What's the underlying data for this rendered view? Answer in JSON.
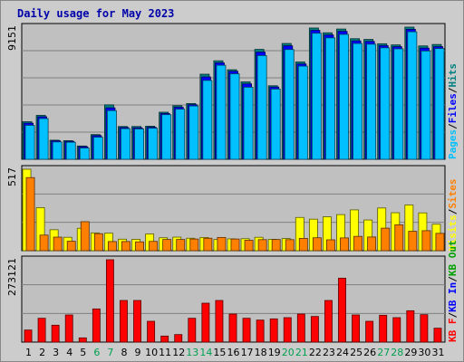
{
  "title": "Daily usage for May 2023",
  "colors": {
    "background": "#cccccc",
    "plot": "#c0c0c0",
    "title": "#0000aa",
    "hits": "#008080",
    "files": "#0000ff",
    "pages": "#00c0ff",
    "visits": "#ffff00",
    "sites": "#ff8000",
    "kb": "#ff0000",
    "kb_in": "#0000ff",
    "kb_out": "#00a000",
    "weekend_tick": "#00a050"
  },
  "chart_data": [
    {
      "type": "bar",
      "panel": "top",
      "ymax_label": "9151",
      "ymax": 9151,
      "right_legend": [
        {
          "text": "Pages",
          "color": "#00c0ff"
        },
        {
          "text": "/",
          "color": "#000000"
        },
        {
          "text": "Files",
          "color": "#0000ff"
        },
        {
          "text": "/",
          "color": "#000000"
        },
        {
          "text": "Hits",
          "color": "#008080"
        }
      ],
      "series": [
        {
          "name": "Hits",
          "values": [
            2600,
            3040,
            1320,
            1290,
            920,
            1710,
            3770,
            2270,
            2270,
            2290,
            3260,
            3710,
            3860,
            5890,
            6820,
            6200,
            5360,
            7610,
            5090,
            8020,
            6740,
            9090,
            8760,
            9020,
            8350,
            8300,
            8000,
            7920,
            9151,
            7850,
            7950
          ]
        },
        {
          "name": "Files",
          "values": [
            2500,
            2940,
            1280,
            1240,
            870,
            1640,
            3560,
            2200,
            2180,
            2220,
            3170,
            3600,
            3780,
            5700,
            6680,
            6090,
            5220,
            7420,
            5000,
            7860,
            6600,
            8930,
            8610,
            8860,
            8200,
            8160,
            7870,
            7800,
            9000,
            7700,
            7800
          ]
        },
        {
          "name": "Pages",
          "values": [
            2350,
            2820,
            1200,
            1180,
            780,
            1530,
            3370,
            2120,
            2100,
            2150,
            3090,
            3470,
            3690,
            5460,
            6510,
            5920,
            4990,
            7180,
            4860,
            7600,
            6450,
            8730,
            8410,
            8650,
            8020,
            7970,
            7720,
            7650,
            8830,
            7500,
            7670
          ]
        }
      ]
    },
    {
      "type": "bar",
      "panel": "middle",
      "ymax_label": "517",
      "ymax": 517,
      "right_legend": [
        {
          "text": "Visits",
          "color": "#ffff00"
        },
        {
          "text": "/",
          "color": "#000000"
        },
        {
          "text": "Sites",
          "color": "#ff8000"
        }
      ],
      "series": [
        {
          "name": "Visits",
          "values": [
            517,
            273,
            133,
            85,
            142,
            113,
            111,
            73,
            72,
            106,
            82,
            86,
            79,
            84,
            71,
            75,
            76,
            85,
            72,
            77,
            211,
            200,
            215,
            229,
            259,
            195,
            271,
            241,
            290,
            240,
            168
          ]
        },
        {
          "name": "Sites",
          "values": [
            464,
            99,
            86,
            60,
            184,
            108,
            58,
            58,
            56,
            59,
            71,
            71,
            74,
            79,
            84,
            74,
            66,
            70,
            71,
            70,
            78,
            82,
            69,
            81,
            91,
            87,
            143,
            164,
            123,
            127,
            110
          ]
        }
      ]
    },
    {
      "type": "bar",
      "panel": "bottom",
      "ymax_label": "273121",
      "ymax": 273121,
      "right_legend": [
        {
          "text": "KB F",
          "color": "#ff0000"
        },
        {
          "text": "/",
          "color": "#000000"
        },
        {
          "text": "KB In",
          "color": "#0000ff"
        },
        {
          "text": "/",
          "color": "#000000"
        },
        {
          "text": "KB Out",
          "color": "#00a000"
        }
      ],
      "series": [
        {
          "name": "KB F",
          "values": [
            40000,
            79000,
            56000,
            90000,
            14000,
            110000,
            273121,
            138000,
            138000,
            69000,
            20000,
            25000,
            79000,
            129000,
            138000,
            93000,
            79000,
            73000,
            77000,
            81000,
            93000,
            85000,
            138000,
            212000,
            90000,
            69000,
            89000,
            81000,
            104000,
            91000,
            46000
          ]
        }
      ]
    }
  ],
  "x_labels": [
    "1",
    "2",
    "3",
    "4",
    "5",
    "6",
    "7",
    "8",
    "9",
    "10",
    "11",
    "12",
    "13",
    "14",
    "15",
    "16",
    "17",
    "18",
    "19",
    "20",
    "21",
    "22",
    "23",
    "24",
    "25",
    "26",
    "27",
    "28",
    "29",
    "30",
    "31"
  ],
  "weekend_days": [
    6,
    7,
    13,
    14,
    20,
    21,
    27,
    28
  ]
}
